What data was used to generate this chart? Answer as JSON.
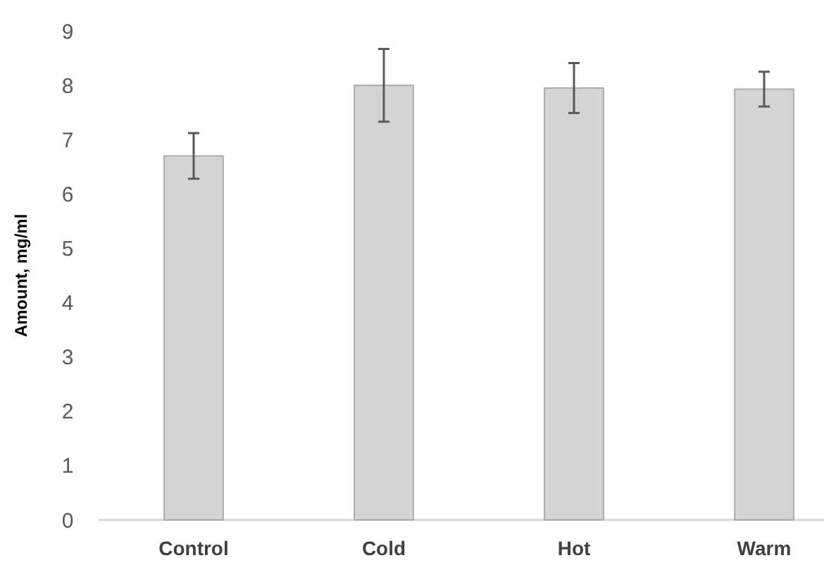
{
  "chart_data": {
    "type": "bar",
    "ylabel": "Amount, mg/ml",
    "categories": [
      "Control",
      "Cold",
      "Hot",
      "Warm"
    ],
    "values": [
      6.7,
      8.0,
      7.95,
      7.93
    ],
    "errors": [
      0.42,
      0.67,
      0.46,
      0.32
    ],
    "color": "#d4d4d4",
    "ylim": [
      0,
      9
    ],
    "yticks": [
      0,
      1,
      2,
      3,
      4,
      5,
      6,
      7,
      8,
      9
    ],
    "grid": false
  }
}
